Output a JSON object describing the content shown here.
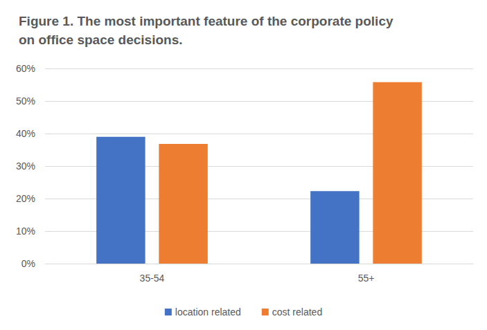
{
  "chart_data": {
    "type": "bar",
    "title": "Figure 1. The most important feature of the corporate policy on office space decisions.",
    "categories": [
      "35-54",
      "55+"
    ],
    "series": [
      {
        "name": "location related",
        "color": "#4472c4",
        "values": [
          39,
          22.3
        ]
      },
      {
        "name": "cost related",
        "color": "#ed7d31",
        "values": [
          36.8,
          55.8
        ]
      }
    ],
    "ylim": [
      0,
      60
    ],
    "yticks": [
      {
        "value": 0,
        "label": "0%"
      },
      {
        "value": 10,
        "label": "10%"
      },
      {
        "value": 20,
        "label": "20%"
      },
      {
        "value": 30,
        "label": "30%"
      },
      {
        "value": 40,
        "label": "40%"
      },
      {
        "value": 50,
        "label": "50%"
      },
      {
        "value": 60,
        "label": "60%"
      }
    ],
    "grid": true,
    "legend": "bottom"
  }
}
